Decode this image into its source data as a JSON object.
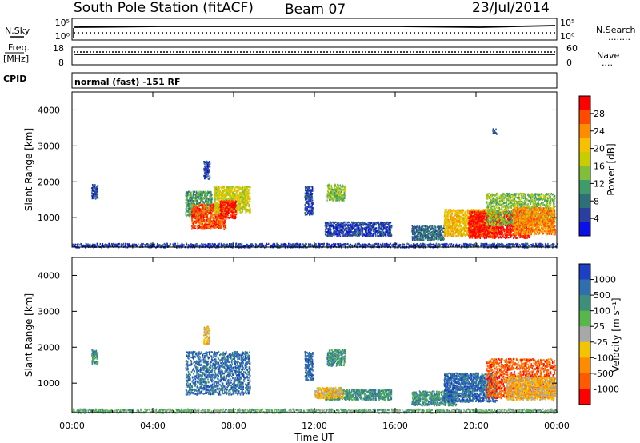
{
  "header": {
    "station": "South Pole Station (fitACF)",
    "beam": "Beam 07",
    "date": "23/Jul/2014"
  },
  "nsky_panel": {
    "left_label": "N.Sky",
    "left_ticks": [
      "10^5",
      "10^0"
    ],
    "right_label": "N.Search",
    "right_ticks": [
      "10^5",
      "10^0"
    ],
    "right_legend_marker": "........"
  },
  "freq_panel": {
    "left_label_1": "Freq.",
    "left_label_2": "[MHz]",
    "left_ticks": [
      "18",
      "8"
    ],
    "right_label": "Nave",
    "right_ticks": [
      "60",
      "0"
    ],
    "right_legend_marker": "...."
  },
  "cpid_panel": {
    "label": "CPID",
    "program": "normal (fast) -151 RF"
  },
  "chart_data": [
    {
      "type": "heatmap",
      "panel": "power",
      "ylabel": "Slant Range [km]",
      "yticks": [
        "4000",
        "3000",
        "2000",
        "1000"
      ],
      "ylim_km": [
        180,
        4500
      ],
      "xlim_hours_ut": [
        0,
        24
      ],
      "colorbar_label": "Power [dB]",
      "colorbar_ticks": [
        "28",
        "24",
        "20",
        "16",
        "12",
        "8",
        "4"
      ],
      "colorbar_colors": [
        "#ff0000",
        "#ff4a00",
        "#ff8c00",
        "#f7c000",
        "#c9cd00",
        "#7fbf3a",
        "#3f9b6a",
        "#2e6f7a",
        "#2a3fa0",
        "#0a10e6"
      ],
      "scatter_regions": [
        {
          "t0": 0.95,
          "t1": 1.25,
          "r0": 1550,
          "r1": 1950,
          "level": 1
        },
        {
          "t0": 5.6,
          "t1": 6.9,
          "r0": 1050,
          "r1": 1750,
          "level": 3
        },
        {
          "t0": 5.9,
          "t1": 7.6,
          "r0": 700,
          "r1": 1400,
          "level": 8
        },
        {
          "t0": 7.0,
          "t1": 8.8,
          "r0": 1150,
          "r1": 1900,
          "level": 5
        },
        {
          "t0": 7.3,
          "t1": 8.1,
          "r0": 1000,
          "r1": 1500,
          "level": 9
        },
        {
          "t0": 6.5,
          "t1": 6.8,
          "r0": 2100,
          "r1": 2600,
          "level": 1
        },
        {
          "t0": 11.5,
          "t1": 11.9,
          "r0": 1100,
          "r1": 1900,
          "level": 1
        },
        {
          "t0": 12.6,
          "t1": 13.5,
          "r0": 1500,
          "r1": 1950,
          "level": 4
        },
        {
          "t0": 12.5,
          "t1": 15.8,
          "r0": 500,
          "r1": 900,
          "level": 1
        },
        {
          "t0": 16.8,
          "t1": 18.4,
          "r0": 380,
          "r1": 800,
          "level": 2
        },
        {
          "t0": 18.4,
          "t1": 21.0,
          "r0": 500,
          "r1": 1250,
          "level": 6
        },
        {
          "t0": 19.6,
          "t1": 22.6,
          "r0": 450,
          "r1": 1200,
          "level": 9
        },
        {
          "t0": 20.5,
          "t1": 23.9,
          "r0": 800,
          "r1": 1700,
          "level": 4
        },
        {
          "t0": 21.8,
          "t1": 23.9,
          "r0": 550,
          "r1": 1300,
          "level": 7
        },
        {
          "t0": 20.8,
          "t1": 21.0,
          "r0": 3350,
          "r1": 3500,
          "level": 1
        },
        {
          "t0": 0.0,
          "t1": 24.0,
          "r0": 190,
          "r1": 300,
          "level": 1
        }
      ]
    },
    {
      "type": "heatmap",
      "panel": "velocity",
      "ylabel": "Slant Range [km]",
      "yticks": [
        "4000",
        "3000",
        "2000",
        "1000"
      ],
      "ylim_km": [
        180,
        4500
      ],
      "xlim_hours_ut": [
        0,
        24
      ],
      "xticks": [
        "00:00",
        "04:00",
        "08:00",
        "12:00",
        "16:00",
        "20:00",
        "00:00"
      ],
      "xlabel": "Time UT",
      "colorbar_label": "Velocity [m s^-1]",
      "colorbar_ticks": [
        "1000",
        "500",
        "100",
        "25",
        "-25",
        "-100",
        "-500",
        "-1000"
      ],
      "colorbar_colors": [
        "#1d3fc4",
        "#2f6fb0",
        "#3e8f7a",
        "#58b64a",
        "#a8a8a8",
        "#f5c400",
        "#ff8c00",
        "#ff5a00",
        "#ff0000"
      ],
      "scatter_regions": [
        {
          "t0": 0.95,
          "t1": 1.25,
          "r0": 1550,
          "r1": 1950,
          "level": 6
        },
        {
          "t0": 5.6,
          "t1": 8.8,
          "r0": 700,
          "r1": 1900,
          "level": 7
        },
        {
          "t0": 6.5,
          "t1": 6.8,
          "r0": 2100,
          "r1": 2600,
          "level": 3
        },
        {
          "t0": 11.5,
          "t1": 11.9,
          "r0": 1100,
          "r1": 1900,
          "level": 7
        },
        {
          "t0": 12.6,
          "t1": 13.5,
          "r0": 1500,
          "r1": 1950,
          "level": 6
        },
        {
          "t0": 12.5,
          "t1": 15.8,
          "r0": 550,
          "r1": 850,
          "level": 6
        },
        {
          "t0": 12.0,
          "t1": 13.4,
          "r0": 600,
          "r1": 900,
          "level": 3
        },
        {
          "t0": 16.8,
          "t1": 19.0,
          "r0": 400,
          "r1": 800,
          "level": 6
        },
        {
          "t0": 18.4,
          "t1": 21.0,
          "r0": 500,
          "r1": 1300,
          "level": 7
        },
        {
          "t0": 20.5,
          "t1": 23.9,
          "r0": 600,
          "r1": 1700,
          "level": 1
        },
        {
          "t0": 21.5,
          "t1": 23.9,
          "r0": 550,
          "r1": 1200,
          "level": 3
        },
        {
          "t0": 0.0,
          "t1": 24.0,
          "r0": 190,
          "r1": 300,
          "level": 5
        }
      ]
    }
  ]
}
